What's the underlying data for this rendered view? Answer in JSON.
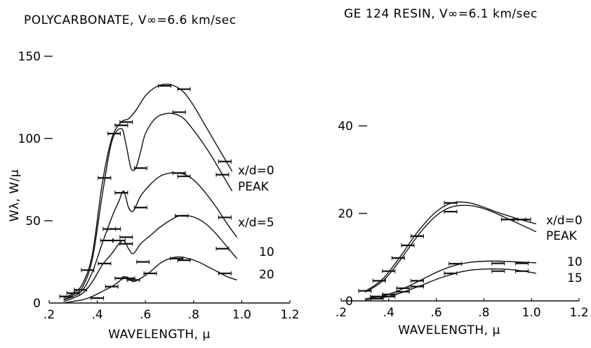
{
  "colors": {
    "ink": "#111111",
    "background": "#ffffff"
  },
  "chart_data": [
    {
      "type": "line",
      "title": "POLYCARBONATE, V∞=6.6 km/sec",
      "xlabel": "WAVELENGTH, μ",
      "ylabel": "Wλ, W/μ",
      "xlim": [
        0.2,
        1.2
      ],
      "ylim": [
        0,
        150
      ],
      "x_ticks": [
        0.2,
        0.4,
        0.6,
        0.8,
        1.0,
        1.2
      ],
      "x_tick_labels": [
        ".2",
        ".4",
        ".6",
        ".8",
        "1.0",
        "1.2"
      ],
      "y_ticks": [
        0,
        50,
        100,
        150
      ],
      "y_tick_labels": [
        "0",
        "50",
        "100",
        "150"
      ],
      "grid": false,
      "series": [
        {
          "name": "x/d=0",
          "x": [
            0.26,
            0.3,
            0.34,
            0.38,
            0.42,
            0.46,
            0.5,
            0.53,
            0.56,
            0.6,
            0.64,
            0.68,
            0.72,
            0.76,
            0.8,
            0.84,
            0.88,
            0.92,
            0.96
          ],
          "y": [
            3,
            6,
            12,
            30,
            72,
            100,
            110,
            112,
            117,
            126,
            131,
            133,
            132,
            128,
            120,
            110,
            100,
            90,
            80
          ]
        },
        {
          "name": "PEAK",
          "x": [
            0.26,
            0.3,
            0.34,
            0.38,
            0.42,
            0.46,
            0.5,
            0.52,
            0.54,
            0.56,
            0.58,
            0.6,
            0.64,
            0.68,
            0.72,
            0.76,
            0.8,
            0.84,
            0.88,
            0.92,
            0.96
          ],
          "y": [
            2,
            5,
            10,
            27,
            65,
            98,
            106,
            96,
            82,
            82,
            92,
            103,
            112,
            115,
            115,
            112,
            105,
            97,
            88,
            78,
            68
          ]
        },
        {
          "name": "x/d=5",
          "x": [
            0.26,
            0.3,
            0.34,
            0.38,
            0.42,
            0.46,
            0.49,
            0.51,
            0.53,
            0.55,
            0.58,
            0.62,
            0.66,
            0.7,
            0.74,
            0.78,
            0.82,
            0.86,
            0.9,
            0.94,
            0.98
          ],
          "y": [
            2,
            4,
            8,
            19,
            36,
            52,
            62,
            68,
            58,
            56,
            65,
            72,
            77,
            79,
            79,
            77,
            72,
            65,
            57,
            48,
            40
          ]
        },
        {
          "name": "10",
          "x": [
            0.26,
            0.3,
            0.34,
            0.38,
            0.42,
            0.46,
            0.49,
            0.51,
            0.53,
            0.55,
            0.58,
            0.62,
            0.66,
            0.7,
            0.74,
            0.78,
            0.82,
            0.86,
            0.9,
            0.94,
            0.98
          ],
          "y": [
            1,
            3,
            6,
            13,
            23,
            30,
            36,
            38,
            33,
            30,
            36,
            41,
            46,
            50,
            53,
            53,
            51,
            47,
            41,
            34,
            27
          ]
        },
        {
          "name": "20",
          "x": [
            0.26,
            0.3,
            0.34,
            0.38,
            0.42,
            0.46,
            0.49,
            0.51,
            0.53,
            0.55,
            0.58,
            0.62,
            0.66,
            0.7,
            0.74,
            0.78,
            0.82,
            0.86,
            0.9,
            0.94,
            0.98
          ],
          "y": [
            0,
            1,
            2,
            4,
            7,
            10,
            13,
            16,
            15,
            13,
            15,
            19,
            24,
            27,
            28,
            27,
            25,
            22,
            19,
            16,
            14
          ]
        }
      ],
      "error_bars": [
        [
          0.27,
          4
        ],
        [
          0.3,
          6
        ],
        [
          0.33,
          8
        ],
        [
          0.36,
          20
        ],
        [
          0.43,
          76
        ],
        [
          0.45,
          45
        ],
        [
          0.47,
          103
        ],
        [
          0.5,
          108
        ],
        [
          0.52,
          110
        ],
        [
          0.58,
          82
        ],
        [
          0.68,
          132
        ],
        [
          0.76,
          130
        ],
        [
          0.74,
          116
        ],
        [
          0.93,
          86
        ],
        [
          0.92,
          78
        ],
        [
          0.44,
          38
        ],
        [
          0.47,
          45
        ],
        [
          0.5,
          67
        ],
        [
          0.52,
          40
        ],
        [
          0.58,
          58
        ],
        [
          0.74,
          79
        ],
        [
          0.76,
          77
        ],
        [
          0.93,
          52
        ],
        [
          0.43,
          24
        ],
        [
          0.49,
          38
        ],
        [
          0.52,
          36
        ],
        [
          0.59,
          25
        ],
        [
          0.75,
          53
        ],
        [
          0.92,
          33
        ],
        [
          0.46,
          10
        ],
        [
          0.5,
          15
        ],
        [
          0.53,
          15
        ],
        [
          0.55,
          14
        ],
        [
          0.62,
          18
        ],
        [
          0.73,
          27
        ],
        [
          0.76,
          26
        ],
        [
          0.93,
          18
        ],
        [
          0.4,
          3
        ]
      ],
      "annotations": [
        "x/d=0",
        "PEAK",
        "x/d=5",
        "10",
        "20"
      ]
    },
    {
      "type": "line",
      "title": "GE 124 RESIN, V∞=6.1 km/sec",
      "xlabel": "WAVELENGTH, μ",
      "ylabel": "",
      "xlim": [
        0.2,
        1.2
      ],
      "ylim": [
        0,
        45
      ],
      "x_ticks": [
        0.2,
        0.4,
        0.6,
        0.8,
        1.0,
        1.2
      ],
      "x_tick_labels": [
        ".2",
        ".4",
        ".6",
        ".8",
        "1.0",
        "1.2"
      ],
      "y_ticks": [
        0,
        20,
        40
      ],
      "y_tick_labels": [
        "0",
        "20",
        "40"
      ],
      "grid": false,
      "series": [
        {
          "name": "x/d=0",
          "x": [
            0.3,
            0.34,
            0.38,
            0.42,
            0.46,
            0.5,
            0.54,
            0.58,
            0.62,
            0.66,
            0.7,
            0.74,
            0.78,
            0.82,
            0.86,
            0.9,
            0.94,
            0.98,
            1.02
          ],
          "y": [
            2.2,
            3.5,
            5.3,
            8,
            11,
            14.2,
            17,
            19.4,
            21.2,
            22.3,
            22.6,
            22.4,
            21.8,
            21,
            20.2,
            19.5,
            18.8,
            18.2,
            17.6
          ]
        },
        {
          "name": "PEAK",
          "x": [
            0.3,
            0.34,
            0.38,
            0.42,
            0.46,
            0.5,
            0.54,
            0.58,
            0.62,
            0.66,
            0.7,
            0.74,
            0.78,
            0.82,
            0.86,
            0.9,
            0.94,
            0.98,
            1.02
          ],
          "y": [
            2,
            3.2,
            4.8,
            7.3,
            10.2,
            13.3,
            16.1,
            18.5,
            20.3,
            21.4,
            21.8,
            21.8,
            21.4,
            20.7,
            19.8,
            18.8,
            17.8,
            16.8,
            15.8
          ]
        },
        {
          "name": "10",
          "x": [
            0.3,
            0.34,
            0.38,
            0.42,
            0.46,
            0.5,
            0.54,
            0.58,
            0.62,
            0.66,
            0.7,
            0.74,
            0.78,
            0.82,
            0.86,
            0.9,
            0.94,
            0.98,
            1.02
          ],
          "y": [
            0.5,
            0.8,
            1.2,
            1.9,
            2.8,
            3.8,
            4.9,
            6,
            7,
            7.8,
            8.4,
            8.8,
            9,
            9.1,
            9.1,
            9,
            8.9,
            8.8,
            8.7
          ]
        },
        {
          "name": "15",
          "x": [
            0.3,
            0.34,
            0.38,
            0.42,
            0.46,
            0.5,
            0.54,
            0.58,
            0.62,
            0.66,
            0.7,
            0.74,
            0.78,
            0.82,
            0.86,
            0.9,
            0.94,
            0.98,
            1.02
          ],
          "y": [
            0.2,
            0.5,
            0.8,
            1.3,
            2,
            2.8,
            3.6,
            4.5,
            5.3,
            6,
            6.6,
            7,
            7.2,
            7.3,
            7.3,
            7.2,
            7,
            6.7,
            6.3
          ]
        }
      ],
      "error_bars": [
        [
          0.3,
          2.3
        ],
        [
          0.36,
          4.6
        ],
        [
          0.4,
          6.8
        ],
        [
          0.44,
          9.8
        ],
        [
          0.48,
          12.7
        ],
        [
          0.52,
          14.8
        ],
        [
          0.66,
          22.4
        ],
        [
          0.66,
          20.4
        ],
        [
          0.9,
          18.6
        ],
        [
          0.95,
          18.6
        ],
        [
          0.97,
          18.6
        ],
        [
          0.35,
          1
        ],
        [
          0.4,
          1.5
        ],
        [
          0.46,
          2.9
        ],
        [
          0.52,
          4.6
        ],
        [
          0.68,
          8.5
        ],
        [
          0.86,
          8.6
        ],
        [
          0.96,
          8.6
        ],
        [
          0.35,
          0.5
        ],
        [
          0.4,
          1
        ],
        [
          0.46,
          2.1
        ],
        [
          0.52,
          3.3
        ],
        [
          0.66,
          6.3
        ],
        [
          0.86,
          6.8
        ],
        [
          0.96,
          6.8
        ]
      ],
      "annotations": [
        "x/d=0",
        "PEAK",
        "10",
        "15"
      ]
    }
  ]
}
